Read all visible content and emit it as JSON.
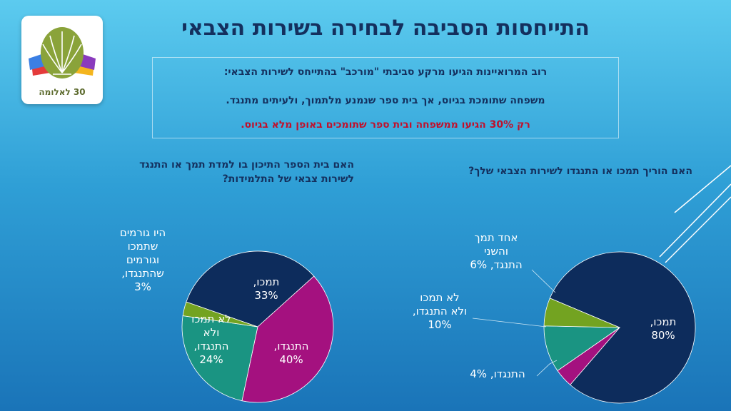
{
  "title": "התייחסות הסביבה לבחירה בשירות הצבאי",
  "logo": {
    "text": "30 לאלומה"
  },
  "info": {
    "line1": "רוב המרואיינות הגיעו מרקע סביבתי \"מורכב\" בהתייחס לשירות הצבאי:",
    "line2": "משפחה שתומכת בגיוס, אך בית ספר שנמנע מלתמוך, ולעיתים מתנגד.",
    "line3": "רק 30% הגיעו ממשפחה ובית ספר שתומכים באופן מלא בגיוס."
  },
  "colors": {
    "navy": "#0d2c5c",
    "magenta": "#a4117f",
    "teal": "#1a9482",
    "olive": "#73a321",
    "red": "#c0102c"
  },
  "chart_data": [
    {
      "type": "pie",
      "title": "האם בית הספר התיכון בו למדת תמך או התנגד לשירות צבאי של התלמידות?",
      "slices": [
        {
          "label": [
            "תמכו,",
            "33%"
          ],
          "value": 33,
          "color": "#0d2c5c",
          "text_color": "#ffffff"
        },
        {
          "label": [
            "התנגדו,",
            "40%"
          ],
          "value": 40,
          "color": "#a4117f",
          "text_color": "#ffffff"
        },
        {
          "label": [
            "לא תמכו",
            "ולא",
            "התנגדו,",
            "24%"
          ],
          "value": 24,
          "color": "#1a9482",
          "text_color": "#ffffff"
        },
        {
          "label": [
            "היו גורמים",
            "שתמכו",
            "וגורמים",
            "שהתנגדו,",
            "3%"
          ],
          "value": 3,
          "color": "#73a321",
          "text_color": "#ffffff"
        }
      ]
    },
    {
      "type": "pie",
      "title": "האם הוריך תמכו או התנגדו לשירות הצבאי שלך?",
      "slices": [
        {
          "label": [
            "תמכו,",
            "80%"
          ],
          "value": 80,
          "color": "#0d2c5c",
          "text_color": "#ffffff"
        },
        {
          "label": [
            "התנגדו, 4%"
          ],
          "value": 4,
          "color": "#a4117f",
          "text_color": "#ffffff"
        },
        {
          "label": [
            "לא תמכו",
            "ולא התנגדו,",
            "10%"
          ],
          "value": 10,
          "color": "#1a9482",
          "text_color": "#ffffff"
        },
        {
          "label": [
            "אחד תמך",
            "והשני",
            "התנגד, 6%"
          ],
          "value": 6,
          "color": "#73a321",
          "text_color": "#ffffff"
        }
      ]
    }
  ]
}
